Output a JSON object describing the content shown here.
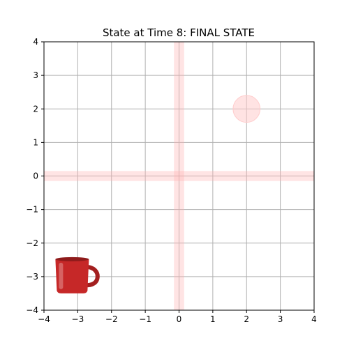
{
  "chart_data": {
    "type": "scatter",
    "title": "State at Time 8: FINAL STATE",
    "xlabel": "",
    "ylabel": "",
    "xlim": [
      -4,
      4
    ],
    "ylim": [
      -4,
      4
    ],
    "xticks": [
      -4,
      -3,
      -2,
      -1,
      0,
      1,
      2,
      3,
      4
    ],
    "yticks": [
      -4,
      -3,
      -2,
      -1,
      0,
      1,
      2,
      3,
      4
    ],
    "xtick_labels": [
      "−4",
      "−3",
      "−2",
      "−1",
      "0",
      "1",
      "2",
      "3",
      "4"
    ],
    "ytick_labels": [
      "−4",
      "−3",
      "−2",
      "−1",
      "0",
      "1",
      "2",
      "3",
      "4"
    ],
    "grid": true,
    "highlight_bands": {
      "vertical_x": 0,
      "horizontal_y": 0,
      "half_width": 0.15,
      "color": "#ffb3b3"
    },
    "target_marker": {
      "x": 2,
      "y": 2,
      "radius": 0.4,
      "color": "#ffcccc"
    },
    "object": {
      "icon": "red-mug-icon",
      "x": -3,
      "y": -3,
      "color": "#c62828"
    }
  }
}
